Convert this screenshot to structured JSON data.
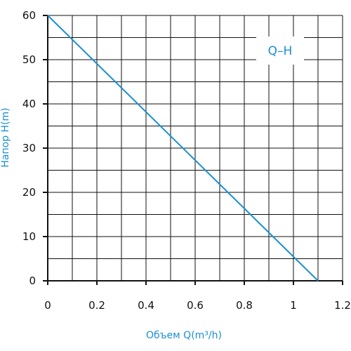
{
  "chart_data": {
    "type": "line",
    "title": "",
    "badge_label": "Q–H",
    "xlabel": "Объем Q(m³/h)",
    "ylabel": "Напор H(m)",
    "xlim": [
      0,
      1.2
    ],
    "ylim": [
      0,
      60
    ],
    "x_ticks": [
      "0",
      "0.2",
      "0.4",
      "0.6",
      "0.8",
      "1",
      "1.2"
    ],
    "y_ticks": [
      "0",
      "10",
      "20",
      "30",
      "40",
      "50",
      "60"
    ],
    "grid": true,
    "grid_minor_x": 0.1,
    "grid_minor_y": 5,
    "series": [
      {
        "x": [
          0,
          1.1
        ],
        "y": [
          60,
          0
        ]
      }
    ],
    "colors": {
      "line": "#1b8fd2",
      "label": "#1b8fd2",
      "grid": "#111111",
      "axis": "#111111"
    }
  }
}
